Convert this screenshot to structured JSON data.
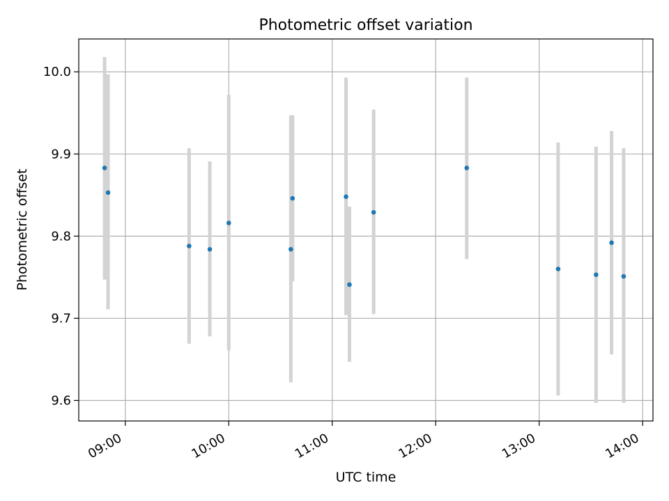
{
  "chart_data": {
    "type": "scatter",
    "title": "Photometric offset variation",
    "xlabel": "UTC time",
    "ylabel": "Photometric offset",
    "x_ticks": [
      "09:00",
      "10:00",
      "11:00",
      "12:00",
      "13:00",
      "14:00"
    ],
    "y_ticks": [
      "9.6",
      "9.7",
      "9.8",
      "9.9",
      "10.0"
    ],
    "xlim": [
      "08:33",
      "14:06"
    ],
    "ylim": [
      9.575,
      10.04
    ],
    "grid": true,
    "legend": "none",
    "point_color": "#1f77b4",
    "errorbar_color": "#d3d3d3",
    "points": [
      {
        "x": "08:48",
        "y": 9.883,
        "err_low": 9.747,
        "err_high": 10.018
      },
      {
        "x": "08:50",
        "y": 9.853,
        "err_low": 9.711,
        "err_high": 9.997
      },
      {
        "x": "09:37",
        "y": 9.788,
        "err_low": 9.669,
        "err_high": 9.907
      },
      {
        "x": "09:49",
        "y": 9.784,
        "err_low": 9.678,
        "err_high": 9.891
      },
      {
        "x": "10:00",
        "y": 9.816,
        "err_low": 9.661,
        "err_high": 9.972
      },
      {
        "x": "10:36",
        "y": 9.784,
        "err_low": 9.622,
        "err_high": 9.947
      },
      {
        "x": "10:37",
        "y": 9.846,
        "err_low": 9.745,
        "err_high": 9.947
      },
      {
        "x": "11:08",
        "y": 9.848,
        "err_low": 9.704,
        "err_high": 9.993
      },
      {
        "x": "11:10",
        "y": 9.741,
        "err_low": 9.647,
        "err_high": 9.836
      },
      {
        "x": "11:24",
        "y": 9.829,
        "err_low": 9.705,
        "err_high": 9.954
      },
      {
        "x": "12:18",
        "y": 9.883,
        "err_low": 9.772,
        "err_high": 9.993
      },
      {
        "x": "13:11",
        "y": 9.76,
        "err_low": 9.606,
        "err_high": 9.914
      },
      {
        "x": "13:33",
        "y": 9.753,
        "err_low": 9.597,
        "err_high": 9.909
      },
      {
        "x": "13:42",
        "y": 9.792,
        "err_low": 9.656,
        "err_high": 9.928
      },
      {
        "x": "13:49",
        "y": 9.751,
        "err_low": 9.597,
        "err_high": 9.907
      }
    ]
  }
}
